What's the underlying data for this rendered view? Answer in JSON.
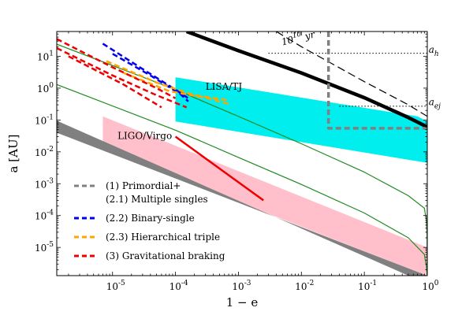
{
  "chart_data": {
    "type": "line",
    "xlabel": "1 − e",
    "ylabel": "a [AU]",
    "xscale": "log",
    "yscale": "log",
    "xlim": [
      1.3e-06,
      1.0
    ],
    "ylim": [
      1.3e-06,
      60
    ],
    "x_ticks": [
      {
        "value": 1e-05,
        "mant": "10",
        "exp": "-5"
      },
      {
        "value": 0.0001,
        "mant": "10",
        "exp": "-4"
      },
      {
        "value": 0.001,
        "mant": "10",
        "exp": "-3"
      },
      {
        "value": 0.01,
        "mant": "10",
        "exp": "-2"
      },
      {
        "value": 0.1,
        "mant": "10",
        "exp": "-1"
      },
      {
        "value": 1,
        "mant": "10",
        "exp": "0"
      }
    ],
    "y_ticks": [
      {
        "value": 1e-05,
        "mant": "10",
        "exp": "-5"
      },
      {
        "value": 0.0001,
        "mant": "10",
        "exp": "-4"
      },
      {
        "value": 0.001,
        "mant": "10",
        "exp": "-3"
      },
      {
        "value": 0.01,
        "mant": "10",
        "exp": "-2"
      },
      {
        "value": 0.1,
        "mant": "10",
        "exp": "-1"
      },
      {
        "value": 1,
        "mant": "10",
        "exp": "0"
      },
      {
        "value": 10,
        "mant": "10",
        "exp": "1"
      }
    ],
    "regions": [
      {
        "name": "LISA/TJ",
        "label": "LISA/TJ",
        "color": "#00eeee",
        "polygon": [
          [
            0.0001,
            2.2
          ],
          [
            0.7,
            0.13
          ],
          [
            1.0,
            0.09
          ],
          [
            1.0,
            0.0045
          ],
          [
            0.0001,
            0.09
          ]
        ]
      },
      {
        "name": "LIGO/Virgo",
        "label": "LIGO/Virgo",
        "color": "#ffc0cb",
        "polygon": [
          [
            7e-06,
            0.13
          ],
          [
            1.0,
            1e-05
          ],
          [
            1.0,
            1.3e-06
          ],
          [
            7e-06,
            0.012
          ]
        ]
      }
    ],
    "band": {
      "name": "lower-grey-band",
      "color": "#808080",
      "polygon": [
        [
          1.3e-06,
          0.095
        ],
        [
          0.5,
          1.3e-06
        ],
        [
          1.0,
          1.3e-06
        ],
        [
          1.3e-06,
          0.04
        ]
      ]
    },
    "series": [
      {
        "name": "green-curve-1",
        "color": "#228B22",
        "style": "solid",
        "width": 1.2,
        "x": [
          1.3e-06,
          0.0001,
          0.001,
          0.01,
          0.1,
          0.5,
          0.9,
          0.97,
          0.99,
          1.0
        ],
        "y": [
          24,
          0.9,
          0.13,
          0.018,
          0.0023,
          0.00042,
          0.00017,
          7e-05,
          2.5e-05,
          1.3e-06
        ]
      },
      {
        "name": "green-curve-2",
        "color": "#228B22",
        "style": "solid",
        "width": 1.2,
        "x": [
          1.3e-06,
          0.0001,
          0.001,
          0.01,
          0.1,
          0.5,
          0.9,
          0.97,
          0.99,
          1.0
        ],
        "y": [
          1.3,
          0.048,
          0.0067,
          0.00095,
          0.00012,
          2e-05,
          6e-06,
          2.5e-06,
          1.5e-06,
          1.3e-06
        ]
      },
      {
        "name": "black-thick-a-h",
        "color": "#000000",
        "style": "solid",
        "width": 4.5,
        "x": [
          0.00015,
          0.001,
          0.01,
          0.1,
          0.5,
          1.0
        ],
        "y": [
          60,
          15,
          3,
          0.5,
          0.12,
          0.06
        ]
      },
      {
        "name": "black-dashed-1e10yr",
        "color": "#000000",
        "style": "dashed",
        "width": 1.2,
        "x": [
          0.004,
          0.01,
          0.1,
          0.5,
          1.0
        ],
        "y": [
          60,
          20,
          1.6,
          0.3,
          0.13
        ]
      },
      {
        "name": "dotted-a-h",
        "color": "#000000",
        "style": "dotted",
        "width": 1.0,
        "x": [
          0.003,
          1.0
        ],
        "y": [
          12.5,
          12.5
        ]
      },
      {
        "name": "dotted-a-ej",
        "color": "#000000",
        "style": "dotted",
        "width": 1.0,
        "x": [
          0.04,
          1.0
        ],
        "y": [
          0.27,
          0.27
        ]
      },
      {
        "name": "grey-primordial",
        "color": "#808080",
        "style": "dashed",
        "width": 3.5,
        "x": [
          0.027,
          0.027,
          1.0
        ],
        "y": [
          60,
          0.055,
          0.055
        ]
      },
      {
        "name": "blue-binary-single-1",
        "color": "#0000ee",
        "style": "dashed",
        "width": 2.5,
        "x": [
          7e-06,
          3e-05,
          0.0001,
          0.00016
        ],
        "y": [
          25,
          4,
          0.9,
          0.48
        ]
      },
      {
        "name": "blue-binary-single-2",
        "color": "#0000ee",
        "style": "dashed",
        "width": 2.5,
        "x": [
          1e-05,
          4e-05,
          0.00012,
          0.00016
        ],
        "y": [
          12,
          2.5,
          0.65,
          0.38
        ]
      },
      {
        "name": "orange-hierarchical-1",
        "color": "#ffa500",
        "style": "dashed",
        "width": 2.5,
        "x": [
          8e-06,
          5e-05,
          0.0002,
          0.0007
        ],
        "y": [
          7,
          1.5,
          0.6,
          0.42
        ]
      },
      {
        "name": "orange-hierarchical-2",
        "color": "#ffa500",
        "style": "dashed",
        "width": 2.5,
        "x": [
          1.5e-05,
          8e-05,
          0.0003,
          0.0007
        ],
        "y": [
          3,
          0.8,
          0.5,
          0.32
        ]
      },
      {
        "name": "red-grav-braking-1",
        "color": "#ee0000",
        "style": "dashed",
        "width": 2.5,
        "x": [
          1.3e-06,
          1e-05,
          5e-05,
          0.0001
        ],
        "y": [
          35,
          4.5,
          1.0,
          0.48
        ]
      },
      {
        "name": "red-grav-braking-2",
        "color": "#ee0000",
        "style": "dashed",
        "width": 2.5,
        "x": [
          1.3e-06,
          1e-05,
          5e-05,
          0.00015
        ],
        "y": [
          18,
          2.5,
          0.6,
          0.25
        ]
      },
      {
        "name": "red-grav-braking-3",
        "color": "#ee0000",
        "style": "dashed",
        "width": 2.5,
        "x": [
          2e-06,
          1.5e-05,
          6e-05
        ],
        "y": [
          10,
          1.3,
          0.25
        ]
      },
      {
        "name": "red-grav-braking-solid",
        "color": "#ee0000",
        "style": "solid",
        "width": 2.5,
        "x": [
          0.0001,
          0.0005,
          0.0025
        ],
        "y": [
          0.03,
          0.003,
          0.0003
        ]
      }
    ],
    "annotations": [
      {
        "name": "label-1e10yr",
        "text": "10",
        "sup": "10",
        "suffix": " yr",
        "x": 0.005,
        "y": 22,
        "rotate": -14
      },
      {
        "name": "label-a-h",
        "text": "a",
        "sub": "h",
        "x": 1.05,
        "y": 13
      },
      {
        "name": "label-a-ej",
        "text": "a",
        "sub": "ej",
        "x": 1.05,
        "y": 0.29
      }
    ],
    "legend": {
      "position": "lower-left",
      "entries": [
        {
          "name": "legend-primordial",
          "color": "#808080",
          "lines": [
            "(1) Primordial+",
            "(2.1) Multiple singles"
          ]
        },
        {
          "name": "legend-binary-single",
          "color": "#0000ee",
          "lines": [
            "(2.2) Binary-single"
          ]
        },
        {
          "name": "legend-hierarchical",
          "color": "#ffa500",
          "lines": [
            "(2.3) Hierarchical triple"
          ]
        },
        {
          "name": "legend-grav-braking",
          "color": "#ee0000",
          "lines": [
            "(3) Gravitational braking"
          ]
        }
      ]
    }
  }
}
